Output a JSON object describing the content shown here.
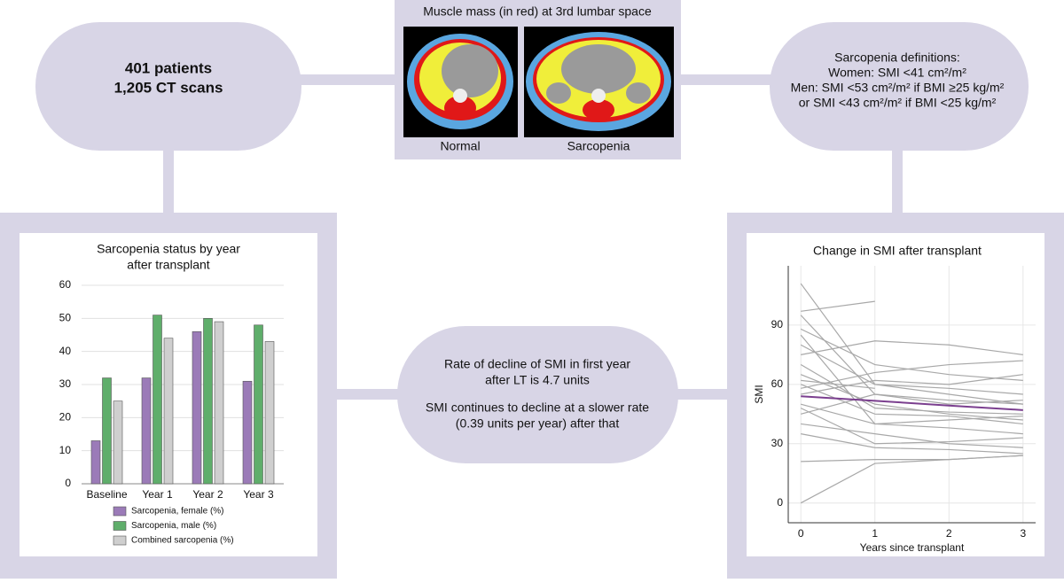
{
  "patients": {
    "lines": [
      "401 patients",
      "1,205 CT scans"
    ]
  },
  "imaging": {
    "title": "Muscle mass (in red) at 3rd lumbar space",
    "labels": [
      "Normal",
      "Sarcopenia"
    ]
  },
  "definitions": {
    "lines": [
      "Sarcopenia definitions:",
      "Women: SMI <41 cm²/m²",
      "Men: SMI <53 cm²/m² if BMI ≥25 kg/m²",
      "or SMI <43 cm²/m² if BMI <25 kg/m²"
    ]
  },
  "decline": {
    "lines": [
      "Rate of decline of SMI in first year",
      "after LT is 4.7 units",
      "SMI continues to decline at a slower rate",
      "(0.39 units per year) after that"
    ]
  },
  "chart_data": [
    {
      "type": "bar",
      "title": [
        "Sarcopenia status by year",
        "after transplant"
      ],
      "categories": [
        "Baseline",
        "Year 1",
        "Year 2",
        "Year 3"
      ],
      "series": [
        {
          "name": "Sarcopenia, female (%)",
          "color": "#9b7bb8",
          "values": [
            13,
            32,
            46,
            31
          ]
        },
        {
          "name": "Sarcopenia, male (%)",
          "color": "#5fae6b",
          "values": [
            32,
            51,
            50,
            48
          ]
        },
        {
          "name": "Combined sarcopenia (%)",
          "color": "#cfcfcf",
          "values": [
            25,
            44,
            49,
            43
          ]
        }
      ],
      "ylim": [
        0,
        60
      ],
      "yticks": [
        0,
        10,
        20,
        30,
        40,
        50,
        60
      ],
      "grid": true,
      "legend": "bottom"
    },
    {
      "type": "line",
      "title": [
        "Change in SMI after transplant"
      ],
      "x_label": "Years since transplant",
      "y_label": "SMI",
      "x": [
        0,
        1,
        2,
        3
      ],
      "xlim": [
        -0.17,
        3.17
      ],
      "xticks": [
        0,
        1,
        2,
        3
      ],
      "ylim": [
        -10,
        120
      ],
      "yticks": [
        0,
        30,
        60,
        90
      ],
      "grid": true,
      "series": [
        {
          "color": "#a8a8a8",
          "values": [
            111,
            60,
            55,
            50
          ]
        },
        {
          "color": "#a8a8a8",
          "values": [
            0,
            20,
            22,
            24
          ]
        },
        {
          "color": "#a8a8a8",
          "values": [
            97,
            102,
            null,
            null
          ]
        },
        {
          "color": "#a8a8a8",
          "values": [
            95,
            55,
            50,
            52
          ]
        },
        {
          "color": "#a8a8a8",
          "values": [
            88,
            70,
            65,
            62
          ]
        },
        {
          "color": "#a8a8a8",
          "values": [
            80,
            60,
            58,
            55
          ]
        },
        {
          "color": "#a8a8a8",
          "values": [
            75,
            82,
            80,
            75
          ]
        },
        {
          "color": "#a8a8a8",
          "values": [
            65,
            50,
            45,
            42
          ]
        },
        {
          "color": "#a8a8a8",
          "values": [
            60,
            45,
            44,
            40
          ]
        },
        {
          "color": "#a8a8a8",
          "values": [
            55,
            62,
            60,
            65
          ]
        },
        {
          "color": "#a8a8a8",
          "values": [
            50,
            40,
            38,
            35
          ]
        },
        {
          "color": "#a8a8a8",
          "values": [
            45,
            55,
            52,
            50
          ]
        },
        {
          "color": "#a8a8a8",
          "values": [
            40,
            35,
            30,
            28
          ]
        },
        {
          "color": "#a8a8a8",
          "values": [
            35,
            28,
            27,
            25
          ]
        },
        {
          "color": "#a8a8a8",
          "values": [
            21,
            22,
            22,
            24
          ]
        },
        {
          "color": "#a8a8a8",
          "values": [
            70,
            48,
            46,
            45
          ]
        },
        {
          "color": "#a8a8a8",
          "values": [
            58,
            66,
            70,
            72
          ]
        },
        {
          "color": "#a8a8a8",
          "values": [
            48,
            30,
            31,
            33
          ]
        },
        {
          "color": "#a8a8a8",
          "values": [
            62,
            58,
            null,
            null
          ]
        },
        {
          "color": "#a8a8a8",
          "values": [
            85,
            40,
            42,
            44
          ]
        },
        {
          "color": "#7b3f8f",
          "values": [
            54,
            51.7,
            49.3,
            47
          ]
        }
      ]
    }
  ]
}
